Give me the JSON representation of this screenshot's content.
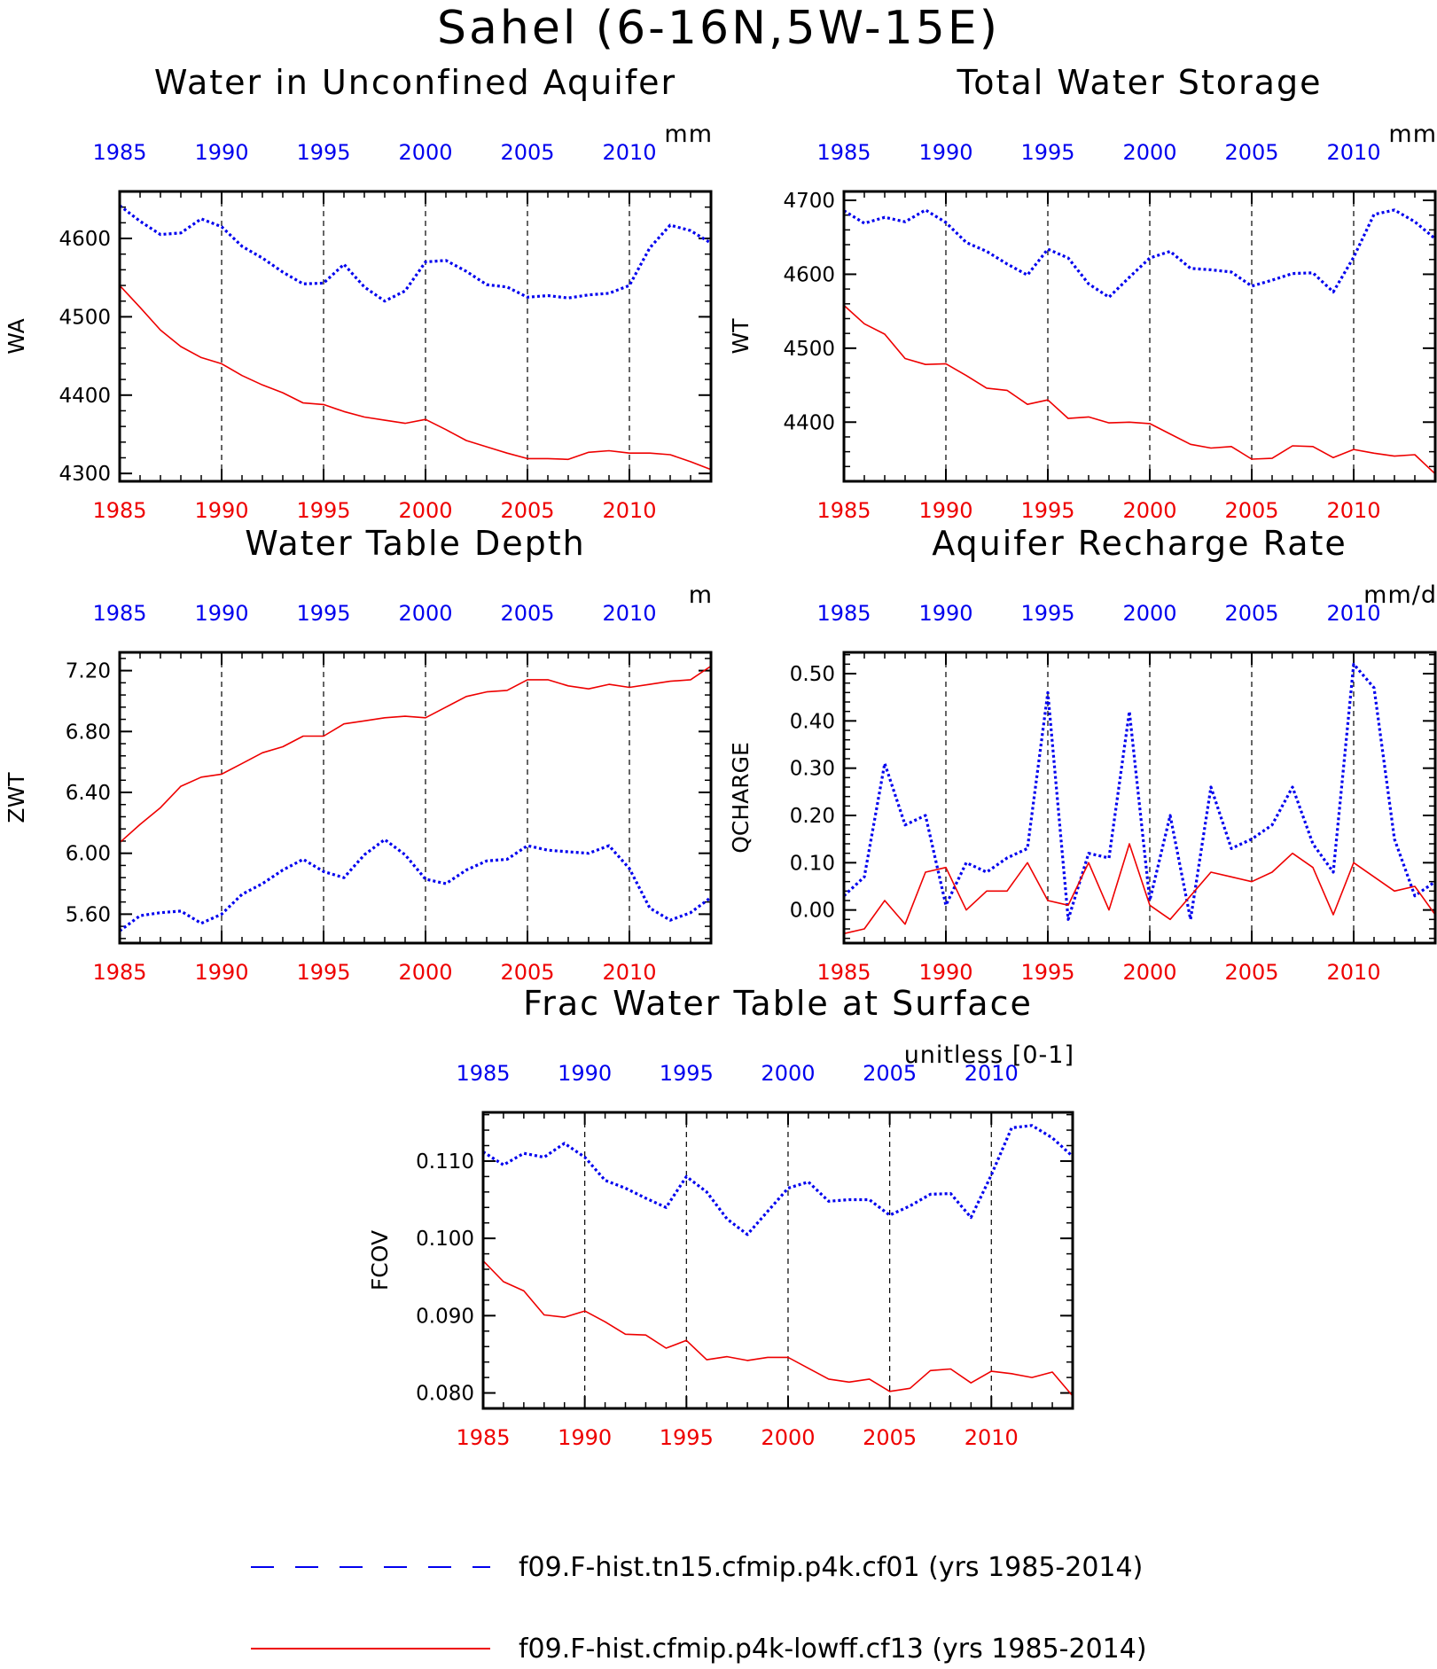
{
  "title": "Sahel (6-16N,5W-15E)",
  "colors": {
    "case1": "#0000ee",
    "case2": "#ee0000",
    "axis": "#000000",
    "grid": "#000000"
  },
  "legend": [
    {
      "label": "f09.F-hist.tn15.cfmip.p4k.cf01 (yrs 1985-2014)",
      "color": "#0000ee",
      "style": "dashed"
    },
    {
      "label": "f09.F-hist.cfmip.p4k-lowff.cf13 (yrs 1985-2014)",
      "color": "#ee0000",
      "style": "solid"
    }
  ],
  "chart_data": [
    {
      "type": "line",
      "title": "Water in Unconfined Aquifer",
      "units": "mm",
      "ylabel": "WA",
      "xlim": [
        1985,
        2014
      ],
      "ylim": [
        4290,
        4660
      ],
      "yticks": [
        4300,
        4400,
        4500,
        4600
      ],
      "ytick_labels": [
        "4300",
        "4400",
        "4500",
        "4600"
      ],
      "xticks": [
        1985,
        1990,
        1995,
        2000,
        2005,
        2010
      ],
      "xtick_labels": [
        "1985",
        "1990",
        "1995",
        "2000",
        "2005",
        "2010"
      ],
      "x": [
        1985,
        1986,
        1987,
        1988,
        1989,
        1990,
        1991,
        1992,
        1993,
        1994,
        1995,
        1996,
        1997,
        1998,
        1999,
        2000,
        2001,
        2002,
        2003,
        2004,
        2005,
        2006,
        2007,
        2008,
        2009,
        2010,
        2011,
        2012,
        2013,
        2014
      ],
      "series": [
        {
          "values": [
            4642,
            4622,
            4605,
            4607,
            4625,
            4615,
            4590,
            4575,
            4557,
            4542,
            4543,
            4567,
            4538,
            4520,
            4533,
            4570,
            4572,
            4558,
            4541,
            4538,
            4525,
            4527,
            4524,
            4528,
            4530,
            4540,
            4588,
            4617,
            4610,
            4594
          ]
        },
        {
          "values": [
            4540,
            4512,
            4483,
            4462,
            4448,
            4440,
            4425,
            4413,
            4403,
            4390,
            4388,
            4379,
            4372,
            4368,
            4364,
            4369,
            4356,
            4342,
            4334,
            4326,
            4319,
            4319,
            4318,
            4327,
            4329,
            4326,
            4326,
            4324,
            4315,
            4305
          ]
        }
      ]
    },
    {
      "type": "line",
      "title": "Total Water Storage",
      "units": "mm",
      "ylabel": "WT",
      "xlim": [
        1985,
        2014
      ],
      "ylim": [
        4320,
        4712
      ],
      "yticks": [
        4400,
        4500,
        4600,
        4700
      ],
      "ytick_labels": [
        "4400",
        "4500",
        "4600",
        "4700"
      ],
      "xticks": [
        1985,
        1990,
        1995,
        2000,
        2005,
        2010
      ],
      "xtick_labels": [
        "1985",
        "1990",
        "1995",
        "2000",
        "2005",
        "2010"
      ],
      "x": [
        1985,
        1986,
        1987,
        1988,
        1989,
        1990,
        1991,
        1992,
        1993,
        1994,
        1995,
        1996,
        1997,
        1998,
        1999,
        2000,
        2001,
        2002,
        2003,
        2004,
        2005,
        2006,
        2007,
        2008,
        2009,
        2010,
        2011,
        2012,
        2013,
        2014
      ],
      "series": [
        {
          "values": [
            4686,
            4669,
            4677,
            4671,
            4687,
            4670,
            4643,
            4631,
            4614,
            4599,
            4634,
            4622,
            4587,
            4569,
            4596,
            4622,
            4631,
            4608,
            4606,
            4603,
            4584,
            4592,
            4601,
            4602,
            4576,
            4623,
            4681,
            4687,
            4671,
            4648
          ]
        },
        {
          "values": [
            4558,
            4533,
            4519,
            4486,
            4478,
            4479,
            4463,
            4446,
            4443,
            4424,
            4430,
            4405,
            4407,
            4399,
            4400,
            4398,
            4384,
            4370,
            4365,
            4367,
            4350,
            4351,
            4368,
            4367,
            4352,
            4363,
            4358,
            4354,
            4356,
            4330
          ]
        }
      ]
    },
    {
      "type": "line",
      "title": "Water Table Depth",
      "units": "m",
      "ylabel": "ZWT",
      "xlim": [
        1985,
        2014
      ],
      "ylim": [
        5.41,
        7.32
      ],
      "yticks": [
        5.6,
        6.0,
        6.4,
        6.8,
        7.2
      ],
      "ytick_labels": [
        "5.60",
        "6.00",
        "6.40",
        "6.80",
        "7.20"
      ],
      "xticks": [
        1985,
        1990,
        1995,
        2000,
        2005,
        2010
      ],
      "xtick_labels": [
        "1985",
        "1990",
        "1995",
        "2000",
        "2005",
        "2010"
      ],
      "x": [
        1985,
        1986,
        1987,
        1988,
        1989,
        1990,
        1991,
        1992,
        1993,
        1994,
        1995,
        1996,
        1997,
        1998,
        1999,
        2000,
        2001,
        2002,
        2003,
        2004,
        2005,
        2006,
        2007,
        2008,
        2009,
        2010,
        2011,
        2012,
        2013,
        2014
      ],
      "series": [
        {
          "values": [
            5.49,
            5.59,
            5.61,
            5.62,
            5.54,
            5.6,
            5.73,
            5.8,
            5.89,
            5.96,
            5.88,
            5.84,
            5.99,
            6.09,
            5.99,
            5.83,
            5.8,
            5.89,
            5.95,
            5.96,
            6.05,
            6.02,
            6.01,
            6.0,
            6.05,
            5.9,
            5.64,
            5.56,
            5.61,
            5.71
          ]
        },
        {
          "values": [
            6.07,
            6.19,
            6.3,
            6.44,
            6.5,
            6.52,
            6.59,
            6.66,
            6.7,
            6.77,
            6.77,
            6.85,
            6.87,
            6.89,
            6.9,
            6.89,
            6.96,
            7.03,
            7.06,
            7.07,
            7.14,
            7.14,
            7.1,
            7.08,
            7.11,
            7.09,
            7.11,
            7.13,
            7.14,
            7.23
          ]
        }
      ]
    },
    {
      "type": "line",
      "title": "Aquifer Recharge Rate",
      "units": "mm/d",
      "ylabel": "QCHARGE",
      "xlim": [
        1985,
        2014
      ],
      "ylim": [
        -0.07,
        0.545
      ],
      "yticks": [
        0.0,
        0.1,
        0.2,
        0.3,
        0.4,
        0.5
      ],
      "ytick_labels": [
        "0.00",
        "0.10",
        "0.20",
        "0.30",
        "0.40",
        "0.50"
      ],
      "xticks": [
        1985,
        1990,
        1995,
        2000,
        2005,
        2010
      ],
      "xtick_labels": [
        "1985",
        "1990",
        "1995",
        "2000",
        "2005",
        "2010"
      ],
      "x": [
        1985,
        1986,
        1987,
        1988,
        1989,
        1990,
        1991,
        1992,
        1993,
        1994,
        1995,
        1996,
        1997,
        1998,
        1999,
        2000,
        2001,
        2002,
        2003,
        2004,
        2005,
        2006,
        2007,
        2008,
        2009,
        2010,
        2011,
        2012,
        2013,
        2014
      ],
      "series": [
        {
          "values": [
            0.03,
            0.07,
            0.31,
            0.18,
            0.2,
            0.01,
            0.1,
            0.08,
            0.11,
            0.13,
            0.46,
            -0.02,
            0.12,
            0.11,
            0.42,
            0.02,
            0.2,
            -0.02,
            0.26,
            0.13,
            0.15,
            0.18,
            0.26,
            0.14,
            0.08,
            0.52,
            0.47,
            0.15,
            0.03,
            0.06
          ]
        },
        {
          "values": [
            -0.05,
            -0.04,
            0.02,
            -0.03,
            0.08,
            0.09,
            0.0,
            0.04,
            0.04,
            0.1,
            0.02,
            0.01,
            0.1,
            0.0,
            0.14,
            0.01,
            -0.02,
            0.03,
            0.08,
            0.07,
            0.06,
            0.08,
            0.12,
            0.09,
            -0.01,
            0.1,
            0.07,
            0.04,
            0.05,
            -0.01
          ]
        }
      ]
    },
    {
      "type": "line",
      "title": "Frac Water Table at Surface",
      "units": "unitless [0-1]",
      "ylabel": "FCOV",
      "xlim": [
        1985,
        2014
      ],
      "ylim": [
        0.078,
        0.1163
      ],
      "yticks": [
        0.08,
        0.09,
        0.1,
        0.11
      ],
      "ytick_labels": [
        "0.080",
        "0.090",
        "0.100",
        "0.110"
      ],
      "xticks": [
        1985,
        1990,
        1995,
        2000,
        2005,
        2010
      ],
      "xtick_labels": [
        "1985",
        "1990",
        "1995",
        "2000",
        "2005",
        "2010"
      ],
      "x": [
        1985,
        1986,
        1987,
        1988,
        1989,
        1990,
        1991,
        1992,
        1993,
        1994,
        1995,
        1996,
        1997,
        1998,
        1999,
        2000,
        2001,
        2002,
        2003,
        2004,
        2005,
        2006,
        2007,
        2008,
        2009,
        2010,
        2011,
        2012,
        2013,
        2014
      ],
      "series": [
        {
          "values": [
            0.1112,
            0.1095,
            0.111,
            0.1105,
            0.1123,
            0.1105,
            0.1075,
            0.1065,
            0.1052,
            0.104,
            0.108,
            0.106,
            0.1025,
            0.1005,
            0.1035,
            0.1065,
            0.1073,
            0.1048,
            0.105,
            0.105,
            0.103,
            0.1042,
            0.1057,
            0.1058,
            0.1027,
            0.1082,
            0.1143,
            0.1146,
            0.113,
            0.1106
          ]
        },
        {
          "values": [
            0.0971,
            0.0944,
            0.0932,
            0.0901,
            0.0898,
            0.0906,
            0.0892,
            0.0876,
            0.0875,
            0.0858,
            0.0868,
            0.0843,
            0.0847,
            0.0842,
            0.0846,
            0.0846,
            0.0832,
            0.0818,
            0.0814,
            0.0818,
            0.0802,
            0.0806,
            0.0829,
            0.0831,
            0.0813,
            0.0828,
            0.0825,
            0.082,
            0.0827,
            0.0796
          ]
        }
      ]
    }
  ]
}
